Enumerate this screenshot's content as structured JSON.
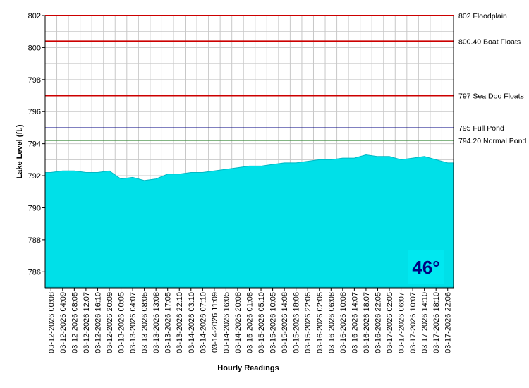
{
  "chart_data": {
    "type": "area",
    "xlabel": "Hourly Readings",
    "ylabel": "Lake Level (ft.)",
    "ylim": [
      785,
      802
    ],
    "y_ticks": [
      786,
      788,
      790,
      792,
      794,
      796,
      798,
      800,
      802
    ],
    "grid": true,
    "x_tick_labels": [
      "03-12-2026 00:08",
      "03-12-2026 04:09",
      "03-12-2026 08:05",
      "03-12-2026 12:07",
      "03-12-2026 16:10",
      "03-12-2026 20:09",
      "03-13-2026 00:05",
      "03-13-2026 04:07",
      "03-13-2026 08:05",
      "03-13-2026 13:08",
      "03-13-2026 17:05",
      "03-13-2026 22:10",
      "03-14-2026 03:10",
      "03-14-2026 07:10",
      "03-14-2026 11:09",
      "03-14-2026 16:05",
      "03-14-2026 20:08",
      "03-15-2026 01:08",
      "03-15-2026 05:10",
      "03-15-2026 10:05",
      "03-15-2026 14:08",
      "03-15-2026 18:06",
      "03-15-2026 22:05",
      "03-16-2026 02:05",
      "03-16-2026 06:08",
      "03-16-2026 10:08",
      "03-16-2026 14:07",
      "03-16-2026 18:07",
      "03-16-2026 22:05",
      "03-17-2026 02:05",
      "03-17-2026 06:07",
      "03-17-2026 10:07",
      "03-17-2026 14:10",
      "03-17-2026 18:10",
      "03-17-2026 22:06"
    ],
    "series": [
      {
        "color": "#00e0e8",
        "values": [
          792.2,
          792.3,
          792.3,
          792.2,
          792.2,
          792.3,
          791.8,
          791.9,
          791.7,
          791.8,
          792.1,
          792.1,
          792.2,
          792.2,
          792.3,
          792.4,
          792.5,
          792.6,
          792.6,
          792.7,
          792.8,
          792.8,
          792.9,
          793.0,
          793.0,
          793.1,
          793.1,
          793.3,
          793.2,
          793.2,
          793.0,
          793.1,
          793.2,
          793.0,
          792.8
        ]
      }
    ],
    "reference_lines": [
      {
        "value": 802,
        "label": "802 Floodplain",
        "color": "#cc0000"
      },
      {
        "value": 800.4,
        "label": "800.40 Boat Floats",
        "color": "#cc0000"
      },
      {
        "value": 797,
        "label": "797 Sea Doo Floats",
        "color": "#cc0000"
      },
      {
        "value": 795,
        "label": "795 Full Pond",
        "color": "#000080"
      },
      {
        "value": 794.2,
        "label": "794.20 Normal Pond",
        "color": "#3a8a3a"
      }
    ]
  },
  "temperature_badge": {
    "text": "46°",
    "background": "#00e8f0",
    "color": "#000080"
  }
}
